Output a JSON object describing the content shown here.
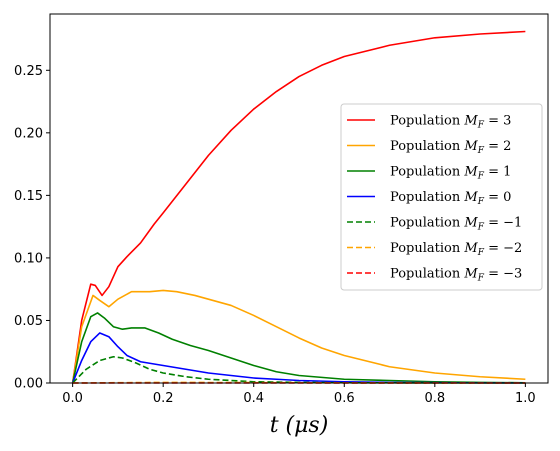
{
  "chart_data": {
    "type": "line",
    "title": "",
    "xlabel": "t (μs)",
    "ylabel": "",
    "xlim": [
      -0.05,
      1.05
    ],
    "ylim": [
      0,
      0.295
    ],
    "xticks": [
      0.0,
      0.2,
      0.4,
      0.6,
      0.8,
      1.0
    ],
    "xtick_labels": [
      "0.0",
      "0.2",
      "0.4",
      "0.6",
      "0.8",
      "1.0"
    ],
    "yticks": [
      0.0,
      0.05,
      0.1,
      0.15,
      0.2,
      0.25
    ],
    "ytick_labels": [
      "0.00",
      "0.05",
      "0.10",
      "0.15",
      "0.20",
      "0.25"
    ],
    "grid": false,
    "legend_position": "center-right",
    "series": [
      {
        "name": "Population M_F = 3",
        "color": "#ff0000",
        "dash": "solid",
        "x": [
          0,
          0.02,
          0.04,
          0.05,
          0.065,
          0.08,
          0.1,
          0.12,
          0.15,
          0.18,
          0.2,
          0.25,
          0.3,
          0.35,
          0.4,
          0.45,
          0.5,
          0.55,
          0.6,
          0.7,
          0.8,
          0.9,
          1.0
        ],
        "y": [
          0,
          0.05,
          0.079,
          0.078,
          0.07,
          0.077,
          0.093,
          0.101,
          0.112,
          0.127,
          0.136,
          0.159,
          0.182,
          0.202,
          0.219,
          0.233,
          0.245,
          0.254,
          0.261,
          0.27,
          0.276,
          0.279,
          0.281
        ]
      },
      {
        "name": "Population M_F = 2",
        "color": "#ffa500",
        "dash": "solid",
        "x": [
          0,
          0.02,
          0.045,
          0.06,
          0.08,
          0.1,
          0.13,
          0.17,
          0.2,
          0.23,
          0.27,
          0.3,
          0.35,
          0.4,
          0.45,
          0.5,
          0.55,
          0.6,
          0.7,
          0.8,
          0.9,
          1.0
        ],
        "y": [
          0,
          0.045,
          0.07,
          0.066,
          0.061,
          0.067,
          0.073,
          0.073,
          0.074,
          0.073,
          0.07,
          0.067,
          0.062,
          0.054,
          0.045,
          0.036,
          0.028,
          0.022,
          0.013,
          0.008,
          0.005,
          0.003
        ]
      },
      {
        "name": "Population M_F = 1",
        "color": "#008000",
        "dash": "solid",
        "x": [
          0,
          0.02,
          0.04,
          0.055,
          0.07,
          0.09,
          0.11,
          0.13,
          0.16,
          0.19,
          0.22,
          0.26,
          0.3,
          0.35,
          0.4,
          0.45,
          0.5,
          0.6,
          0.7,
          0.8,
          0.9,
          1.0
        ],
        "y": [
          0,
          0.033,
          0.053,
          0.056,
          0.052,
          0.045,
          0.043,
          0.044,
          0.044,
          0.04,
          0.035,
          0.03,
          0.026,
          0.02,
          0.014,
          0.009,
          0.006,
          0.003,
          0.002,
          0.001,
          0.0005,
          0.0002
        ]
      },
      {
        "name": "Population M_F = 0",
        "color": "#0000ff",
        "dash": "solid",
        "x": [
          0,
          0.02,
          0.04,
          0.06,
          0.08,
          0.1,
          0.12,
          0.15,
          0.2,
          0.25,
          0.3,
          0.35,
          0.4,
          0.45,
          0.5,
          0.6,
          0.7,
          0.8,
          0.9,
          1.0
        ],
        "y": [
          0,
          0.018,
          0.033,
          0.04,
          0.037,
          0.029,
          0.022,
          0.017,
          0.014,
          0.011,
          0.008,
          0.006,
          0.004,
          0.003,
          0.002,
          0.001,
          0.0005,
          0.0003,
          0.0001,
          0.0
        ]
      },
      {
        "name": "Population M_F = −1",
        "color": "#008000",
        "dash": "dashed",
        "x": [
          0,
          0.03,
          0.06,
          0.09,
          0.11,
          0.14,
          0.17,
          0.2,
          0.25,
          0.3,
          0.35,
          0.4,
          0.5,
          0.6,
          0.7,
          0.8,
          0.9,
          1.0
        ],
        "y": [
          0,
          0.011,
          0.018,
          0.021,
          0.02,
          0.016,
          0.011,
          0.008,
          0.005,
          0.003,
          0.002,
          0.001,
          0.0005,
          0.0002,
          0.0001,
          0.0,
          0.0,
          0.0
        ]
      },
      {
        "name": "Population M_F = −2",
        "color": "#ffa500",
        "dash": "dashed",
        "x": [
          0,
          0.2,
          0.4,
          0.6,
          0.8,
          1.0
        ],
        "y": [
          0,
          0.0005,
          0.0003,
          0.0001,
          0.0,
          0.0
        ]
      },
      {
        "name": "Population M_F = −3",
        "color": "#ff0000",
        "dash": "dashed",
        "x": [
          0,
          0.2,
          0.4,
          0.6,
          0.8,
          1.0
        ],
        "y": [
          0,
          0.0,
          0.0,
          0.0,
          0.0,
          0.0
        ]
      }
    ],
    "legend": [
      {
        "prefix": "Population ",
        "var": "M",
        "sub": "F",
        "rel": " = 3"
      },
      {
        "prefix": "Population ",
        "var": "M",
        "sub": "F",
        "rel": " = 2"
      },
      {
        "prefix": "Population ",
        "var": "M",
        "sub": "F",
        "rel": " = 1"
      },
      {
        "prefix": "Population ",
        "var": "M",
        "sub": "F",
        "rel": " = 0"
      },
      {
        "prefix": "Population ",
        "var": "M",
        "sub": "F",
        "rel": " = −1"
      },
      {
        "prefix": "Population ",
        "var": "M",
        "sub": "F",
        "rel": " = −2"
      },
      {
        "prefix": "Population ",
        "var": "M",
        "sub": "F",
        "rel": " = −3"
      }
    ]
  }
}
